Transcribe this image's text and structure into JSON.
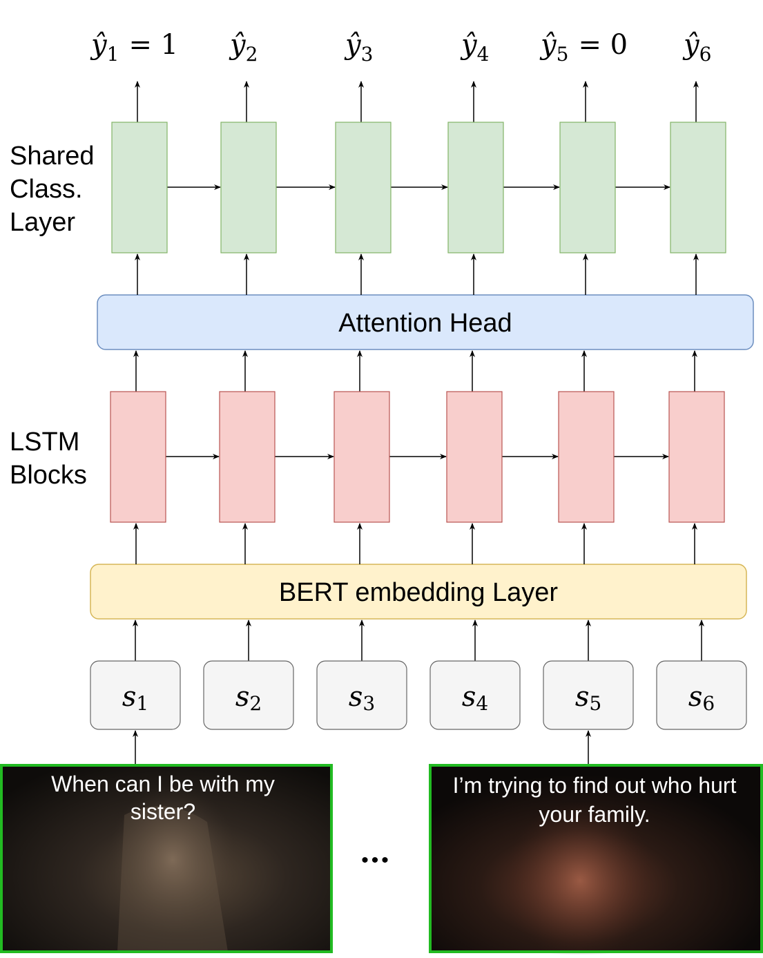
{
  "labels": {
    "shared_class_layer": [
      "Shared",
      "Class.",
      "Layer"
    ],
    "lstm_blocks": [
      "LSTM",
      "Blocks"
    ],
    "attention_head": "Attention Head",
    "bert_layer": "BERT embedding Layer",
    "ellipsis": "•••"
  },
  "outputs": [
    {
      "base": "ŷ",
      "sub": "1",
      "eq": "= 1"
    },
    {
      "base": "ŷ",
      "sub": "2",
      "eq": ""
    },
    {
      "base": "ŷ",
      "sub": "3",
      "eq": ""
    },
    {
      "base": "ŷ",
      "sub": "4",
      "eq": ""
    },
    {
      "base": "ŷ",
      "sub": "5",
      "eq": "= 0"
    },
    {
      "base": "ŷ",
      "sub": "6",
      "eq": ""
    }
  ],
  "inputs": [
    {
      "base": "s",
      "sub": "1"
    },
    {
      "base": "s",
      "sub": "2"
    },
    {
      "base": "s",
      "sub": "3"
    },
    {
      "base": "s",
      "sub": "4"
    },
    {
      "base": "s",
      "sub": "5"
    },
    {
      "base": "s",
      "sub": "6"
    }
  ],
  "frames": [
    {
      "caption": [
        "When can I be with my",
        "sister?"
      ]
    },
    {
      "caption": [
        "I’m trying to find out who hurt",
        "your family."
      ]
    }
  ],
  "colors": {
    "green_fill": "#d5e8d4",
    "green_stroke": "#82b366",
    "red_fill": "#f8cecc",
    "red_stroke": "#b85450",
    "blue_fill": "#dae8fc",
    "blue_stroke": "#6c8ebf",
    "yellow_fill": "#fff2cc",
    "yellow_stroke": "#d6b656",
    "grey_fill": "#f5f5f5",
    "grey_stroke": "#666666",
    "frame_border": "#22bb22"
  }
}
